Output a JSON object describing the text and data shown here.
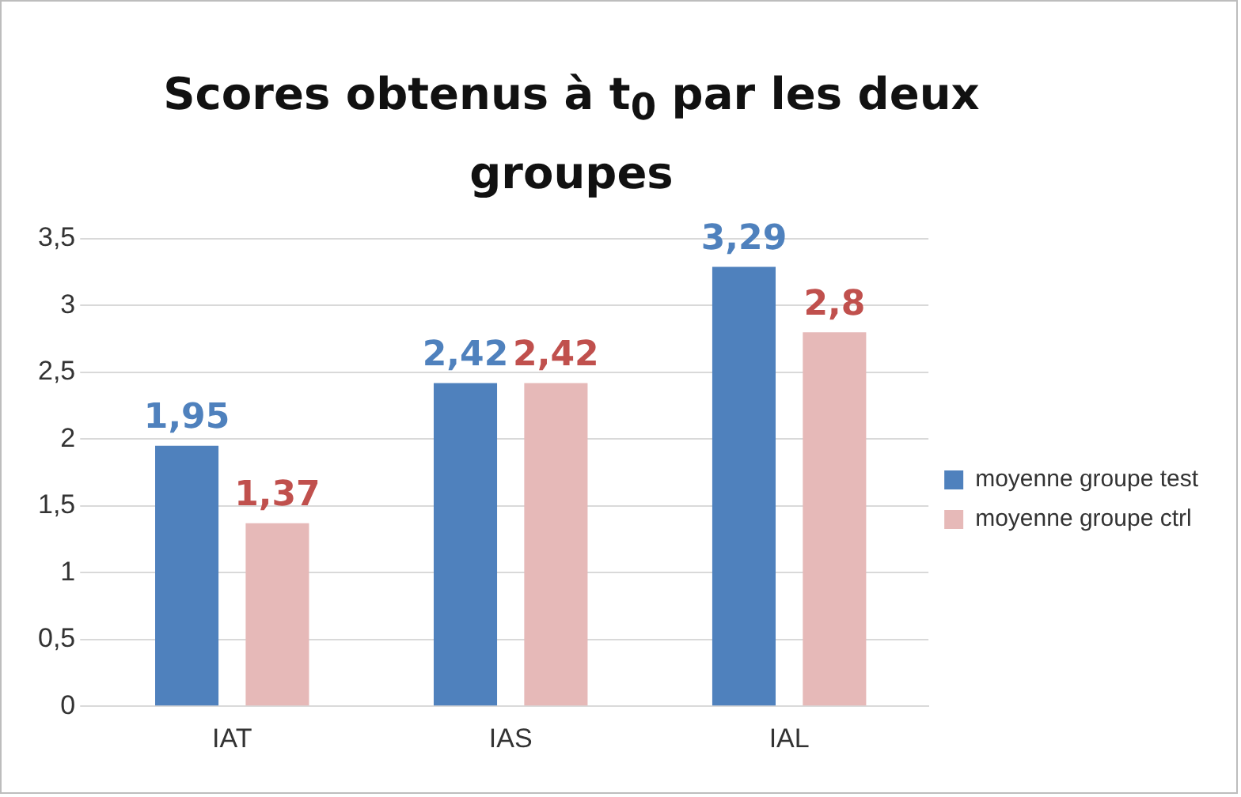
{
  "chart_data": {
    "type": "bar",
    "title": "Scores obtenus à t$_{0}$ par les deux groupes",
    "categories": [
      "IAT",
      "IAS",
      "IAL"
    ],
    "series": [
      {
        "name": "moyenne groupe test",
        "color": "#4f81bd",
        "values": [
          1.95,
          2.42,
          3.29
        ],
        "value_labels": [
          "1,95",
          "2,42",
          "3,29"
        ]
      },
      {
        "name": "moyenne groupe ctrl",
        "color": "#e6b9b8",
        "values": [
          1.37,
          2.42,
          2.8
        ],
        "value_labels": [
          "1,37",
          "2,42",
          "2,8"
        ]
      }
    ],
    "ylim": [
      0,
      3.5
    ],
    "yticks": [
      {
        "value": 0,
        "label": "0"
      },
      {
        "value": 0.5,
        "label": "0,5"
      },
      {
        "value": 1,
        "label": "1"
      },
      {
        "value": 1.5,
        "label": "1,5"
      },
      {
        "value": 2,
        "label": "2"
      },
      {
        "value": 2.5,
        "label": "2,5"
      },
      {
        "value": 3,
        "label": "3"
      },
      {
        "value": 3.5,
        "label": "3,5"
      }
    ],
    "grid": "y",
    "legend": "right"
  }
}
